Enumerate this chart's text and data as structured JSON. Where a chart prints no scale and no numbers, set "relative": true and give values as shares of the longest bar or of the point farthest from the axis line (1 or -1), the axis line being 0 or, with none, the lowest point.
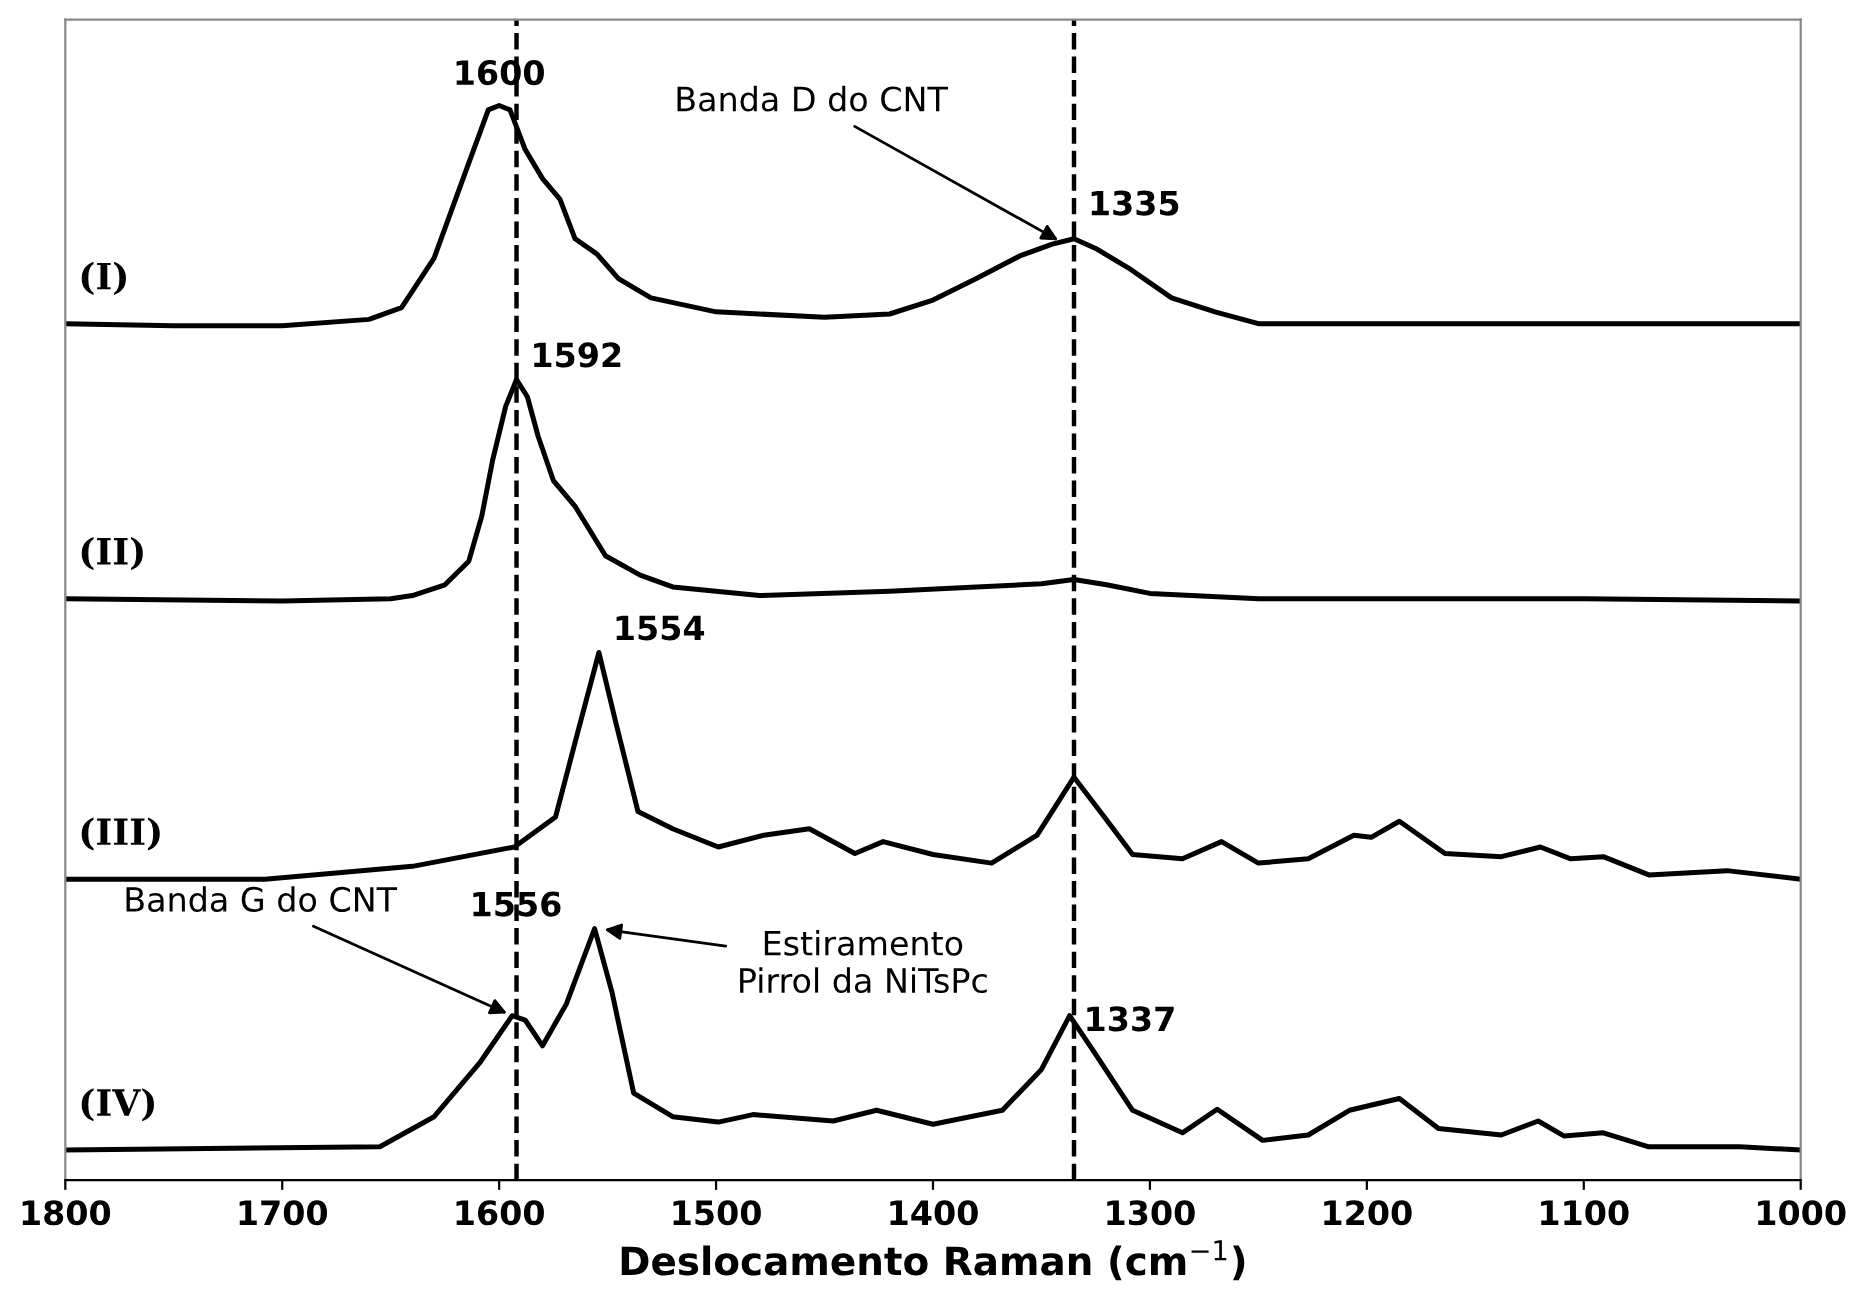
{
  "chart_data": {
    "type": "line",
    "relative": true,
    "xlabel": "Deslocamento Raman (cm$^{−1}$)",
    "xlim": [
      1800,
      1000
    ],
    "xticks": [
      1800,
      1700,
      1600,
      1500,
      1400,
      1300,
      1200,
      1100,
      1000
    ],
    "grid": false,
    "marker": "none",
    "line_style": "solid",
    "series": [
      {
        "name": "(I)",
        "color": "#000000",
        "x": [
          1800,
          1750,
          1700,
          1660,
          1645,
          1630,
          1615,
          1605,
          1600,
          1595,
          1588,
          1580,
          1572,
          1565,
          1555,
          1545,
          1530,
          1500,
          1450,
          1420,
          1400,
          1380,
          1360,
          1345,
          1335,
          1325,
          1310,
          1290,
          1270,
          1250,
          1200,
          1100,
          1000
        ],
        "values": [
          0.797,
          0.795,
          0.795,
          0.801,
          0.812,
          0.858,
          0.941,
          0.996,
          1.0,
          0.996,
          0.959,
          0.932,
          0.913,
          0.876,
          0.862,
          0.839,
          0.821,
          0.808,
          0.803,
          0.806,
          0.819,
          0.839,
          0.86,
          0.871,
          0.876,
          0.867,
          0.849,
          0.821,
          0.808,
          0.797,
          0.797,
          0.797,
          0.797
        ]
      },
      {
        "name": "(II)",
        "color": "#000000",
        "x": [
          1800,
          1700,
          1650,
          1640,
          1625,
          1614,
          1608,
          1603,
          1597,
          1592,
          1587,
          1582,
          1575,
          1565,
          1551,
          1535,
          1520,
          1480,
          1420,
          1380,
          1350,
          1335,
          1320,
          1300,
          1250,
          1100,
          1000
        ],
        "values": [
          0.541,
          0.539,
          0.541,
          0.544,
          0.554,
          0.576,
          0.618,
          0.67,
          0.72,
          0.745,
          0.729,
          0.692,
          0.651,
          0.627,
          0.581,
          0.563,
          0.552,
          0.544,
          0.548,
          0.552,
          0.555,
          0.559,
          0.554,
          0.546,
          0.541,
          0.541,
          0.539
        ]
      },
      {
        "name": "(III)",
        "color": "#000000",
        "x": [
          1800,
          1708,
          1640,
          1593,
          1574,
          1564,
          1554,
          1546,
          1536,
          1520,
          1499,
          1478,
          1457,
          1436,
          1423,
          1400,
          1373,
          1352,
          1335,
          1321,
          1308,
          1285,
          1267,
          1250,
          1227,
          1206,
          1198,
          1185,
          1164,
          1138,
          1120,
          1106,
          1091,
          1070,
          1034,
          1000
        ],
        "values": [
          0.28,
          0.28,
          0.292,
          0.31,
          0.338,
          0.415,
          0.491,
          0.424,
          0.343,
          0.327,
          0.31,
          0.321,
          0.327,
          0.304,
          0.315,
          0.303,
          0.295,
          0.321,
          0.375,
          0.338,
          0.303,
          0.299,
          0.315,
          0.295,
          0.299,
          0.321,
          0.319,
          0.334,
          0.304,
          0.301,
          0.31,
          0.299,
          0.301,
          0.284,
          0.288,
          0.28
        ]
      },
      {
        "name": "(IV)",
        "color": "#000000",
        "x": [
          1800,
          1655,
          1630,
          1609,
          1594,
          1588,
          1580,
          1569,
          1556,
          1548,
          1538,
          1520,
          1499,
          1483,
          1446,
          1426,
          1400,
          1368,
          1350,
          1337,
          1326,
          1308,
          1285,
          1269,
          1248,
          1227,
          1208,
          1185,
          1167,
          1138,
          1121,
          1109,
          1091,
          1070,
          1028,
          1000
        ],
        "values": [
          0.028,
          0.031,
          0.059,
          0.109,
          0.153,
          0.149,
          0.125,
          0.164,
          0.234,
          0.175,
          0.081,
          0.059,
          0.054,
          0.061,
          0.055,
          0.065,
          0.052,
          0.065,
          0.103,
          0.153,
          0.12,
          0.065,
          0.044,
          0.066,
          0.037,
          0.042,
          0.065,
          0.076,
          0.048,
          0.042,
          0.055,
          0.041,
          0.044,
          0.031,
          0.031,
          0.028
        ]
      }
    ],
    "ref_lines": [
      {
        "axis": "x",
        "value": 1592,
        "line_style": "dashed",
        "color": "#000000"
      },
      {
        "axis": "x",
        "value": 1335,
        "line_style": "dashed",
        "color": "#000000"
      }
    ],
    "annotations": [
      {
        "text": "1600",
        "x": 1600,
        "y": 1.0
      },
      {
        "text": "1335",
        "x": 1335,
        "y": 0.876
      },
      {
        "text": "1592",
        "x": 1592,
        "y": 0.745
      },
      {
        "text": "1554",
        "x": 1554,
        "y": 0.491
      },
      {
        "text": "1556",
        "x": 1556,
        "y": 0.234
      },
      {
        "text": "1337",
        "x": 1337,
        "y": 0.153
      },
      {
        "text": "Banda D do CNT",
        "x": 1340,
        "y": 0.872
      },
      {
        "text": "Banda G do CNT",
        "x": 1594,
        "y": 0.153
      },
      {
        "text": "Estiramento\nPirrol da NiTsPc",
        "x": 1554,
        "y": 0.234
      }
    ]
  }
}
